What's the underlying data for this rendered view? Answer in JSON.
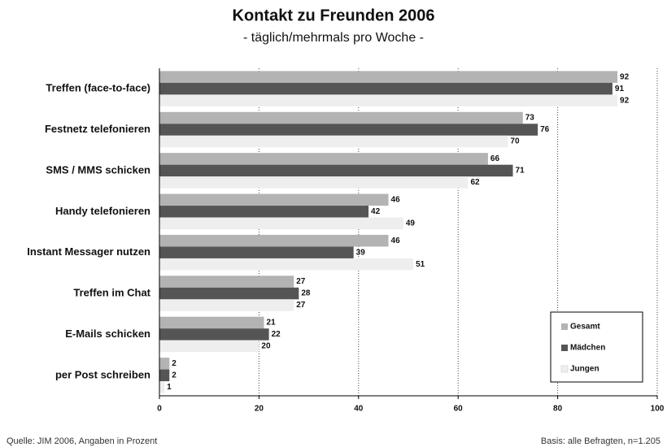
{
  "chart_data": {
    "type": "hbar",
    "title": "Kontakt zu Freunden 2006",
    "subtitle": "- täglich/mehrmals pro Woche -",
    "source": "Quelle: JIM 2006, Angaben in Prozent",
    "basis": "Basis: alle Befragten, n=1.205",
    "categories": [
      "Treffen (face-to-face)",
      "Festnetz telefonieren",
      "SMS / MMS schicken",
      "Handy telefonieren",
      "Instant Messager nutzen",
      "Treffen im Chat",
      "E-Mails schicken",
      "per Post schreiben"
    ],
    "series": [
      {
        "name": "Gesamt",
        "color": "#b3b3b3",
        "values": [
          92,
          73,
          66,
          46,
          46,
          27,
          21,
          2
        ]
      },
      {
        "name": "Mädchen",
        "color": "#555555",
        "values": [
          91,
          76,
          71,
          42,
          39,
          28,
          22,
          2
        ]
      },
      {
        "name": "Jungen",
        "color": "#eeeeee",
        "values": [
          92,
          70,
          62,
          49,
          51,
          27,
          20,
          1
        ]
      }
    ],
    "xlim": [
      0,
      100
    ],
    "xticks": [
      0,
      20,
      40,
      60,
      80,
      100
    ],
    "grid": true,
    "legend": "lower right"
  }
}
